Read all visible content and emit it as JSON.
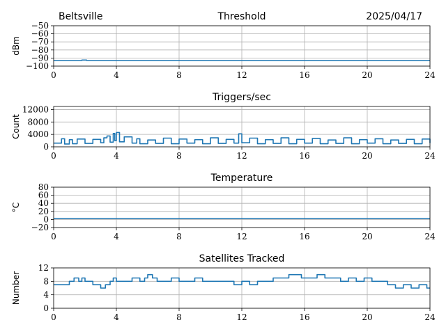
{
  "header": {
    "station": "Beltsville",
    "date": "2025/04/17"
  },
  "style": {
    "line_color": "#1f77b4",
    "grid_color": "#b0b0b0"
  },
  "chart_data": [
    {
      "type": "line",
      "title": "Threshold",
      "ylabel": "dBm",
      "xlim": [
        0,
        24
      ],
      "ylim": [
        -100,
        -50
      ],
      "xticks": [
        0,
        4,
        8,
        12,
        16,
        20,
        24
      ],
      "yticks": [
        -100,
        -90,
        -80,
        -70,
        -60,
        -50
      ],
      "ytick_labels": [
        "−100",
        "−90",
        "−80",
        "−70",
        "−60",
        "−50"
      ],
      "grid": true,
      "series": [
        {
          "x": [
            0,
            1.5,
            1.8,
            2.1,
            2.4,
            6,
            12,
            18,
            24
          ],
          "values": [
            -93,
            -93,
            -92.5,
            -93,
            -93,
            -93,
            -93,
            -93,
            -93
          ]
        }
      ]
    },
    {
      "type": "line",
      "title": "Triggers/sec",
      "ylabel": "Count",
      "xlim": [
        0,
        24
      ],
      "ylim": [
        0,
        13000
      ],
      "xticks": [
        0,
        4,
        8,
        12,
        16,
        20,
        24
      ],
      "yticks": [
        0,
        4000,
        8000,
        12000
      ],
      "ytick_labels": [
        "0",
        "4000",
        "8000",
        "12000"
      ],
      "grid": true,
      "series": [
        {
          "x": [
            0,
            0.5,
            0.7,
            1.0,
            1.2,
            1.5,
            2.0,
            2.5,
            3.0,
            3.2,
            3.4,
            3.6,
            3.8,
            3.9,
            4.0,
            4.2,
            4.5,
            5.0,
            5.3,
            5.5,
            6.0,
            6.5,
            7.0,
            7.5,
            8.0,
            8.5,
            9.0,
            9.5,
            10.0,
            10.5,
            11.0,
            11.5,
            11.8,
            12.0,
            12.5,
            13.0,
            13.5,
            14.0,
            14.5,
            15.0,
            15.5,
            16.0,
            16.5,
            17.0,
            17.5,
            18.0,
            18.5,
            19.0,
            19.5,
            20.0,
            20.5,
            21.0,
            21.5,
            22.0,
            22.5,
            23.0,
            23.5,
            24.0
          ],
          "values": [
            1200,
            2600,
            900,
            2300,
            1000,
            2500,
            1100,
            2400,
            1300,
            2900,
            3500,
            1500,
            4300,
            2000,
            4600,
            1600,
            3200,
            1200,
            2600,
            1000,
            2200,
            1100,
            2800,
            1000,
            2500,
            1200,
            2300,
            1000,
            2900,
            1100,
            2400,
            1200,
            4200,
            1300,
            2800,
            1000,
            2300,
            1100,
            2900,
            1000,
            2400,
            1200,
            2700,
            1000,
            2200,
            1100,
            2900,
            1000,
            2300,
            1200,
            2600,
            1000,
            2200,
            1100,
            2400,
            1000,
            2500,
            1200
          ]
        }
      ]
    },
    {
      "type": "line",
      "title": "Temperature",
      "ylabel": "°C",
      "xlim": [
        0,
        24
      ],
      "ylim": [
        -20,
        80
      ],
      "xticks": [
        0,
        4,
        8,
        12,
        16,
        20,
        24
      ],
      "yticks": [
        -20,
        0,
        20,
        40,
        60,
        80
      ],
      "ytick_labels": [
        "−20",
        "0",
        "20",
        "40",
        "60",
        "80"
      ],
      "grid": true,
      "series": [
        {
          "x": [
            0,
            24
          ],
          "values": [
            2,
            2
          ]
        }
      ]
    },
    {
      "type": "line",
      "title": "Satellites Tracked",
      "ylabel": "Number",
      "xlim": [
        0,
        24
      ],
      "ylim": [
        0,
        12
      ],
      "xticks": [
        0,
        4,
        8,
        12,
        16,
        20,
        24
      ],
      "yticks": [
        0,
        4,
        8,
        12
      ],
      "ytick_labels": [
        "0",
        "4",
        "8",
        "12"
      ],
      "grid": true,
      "series": [
        {
          "x": [
            0,
            0.8,
            1.0,
            1.3,
            1.6,
            1.8,
            2.0,
            2.5,
            3.0,
            3.3,
            3.6,
            3.8,
            4.0,
            4.5,
            5.0,
            5.5,
            5.8,
            6.0,
            6.3,
            6.6,
            7.0,
            7.5,
            8.0,
            8.5,
            9.0,
            9.5,
            10.0,
            10.5,
            11.0,
            11.5,
            12.0,
            12.5,
            13.0,
            13.5,
            14.0,
            14.5,
            15.0,
            15.3,
            15.8,
            16.3,
            16.8,
            17.3,
            17.8,
            18.3,
            18.8,
            19.3,
            19.8,
            20.3,
            20.8,
            21.3,
            21.8,
            22.3,
            22.8,
            23.3,
            23.8,
            24.0
          ],
          "values": [
            7,
            7,
            8,
            9,
            8,
            9,
            8,
            7,
            6,
            7,
            8,
            9,
            8,
            8,
            9,
            8,
            9,
            10,
            9,
            8,
            8,
            9,
            8,
            8,
            9,
            8,
            8,
            8,
            8,
            7,
            8,
            7,
            8,
            8,
            9,
            9,
            10,
            10,
            9,
            9,
            10,
            9,
            9,
            8,
            9,
            8,
            9,
            8,
            8,
            7,
            6,
            7,
            6,
            7,
            6,
            6
          ]
        }
      ]
    }
  ]
}
